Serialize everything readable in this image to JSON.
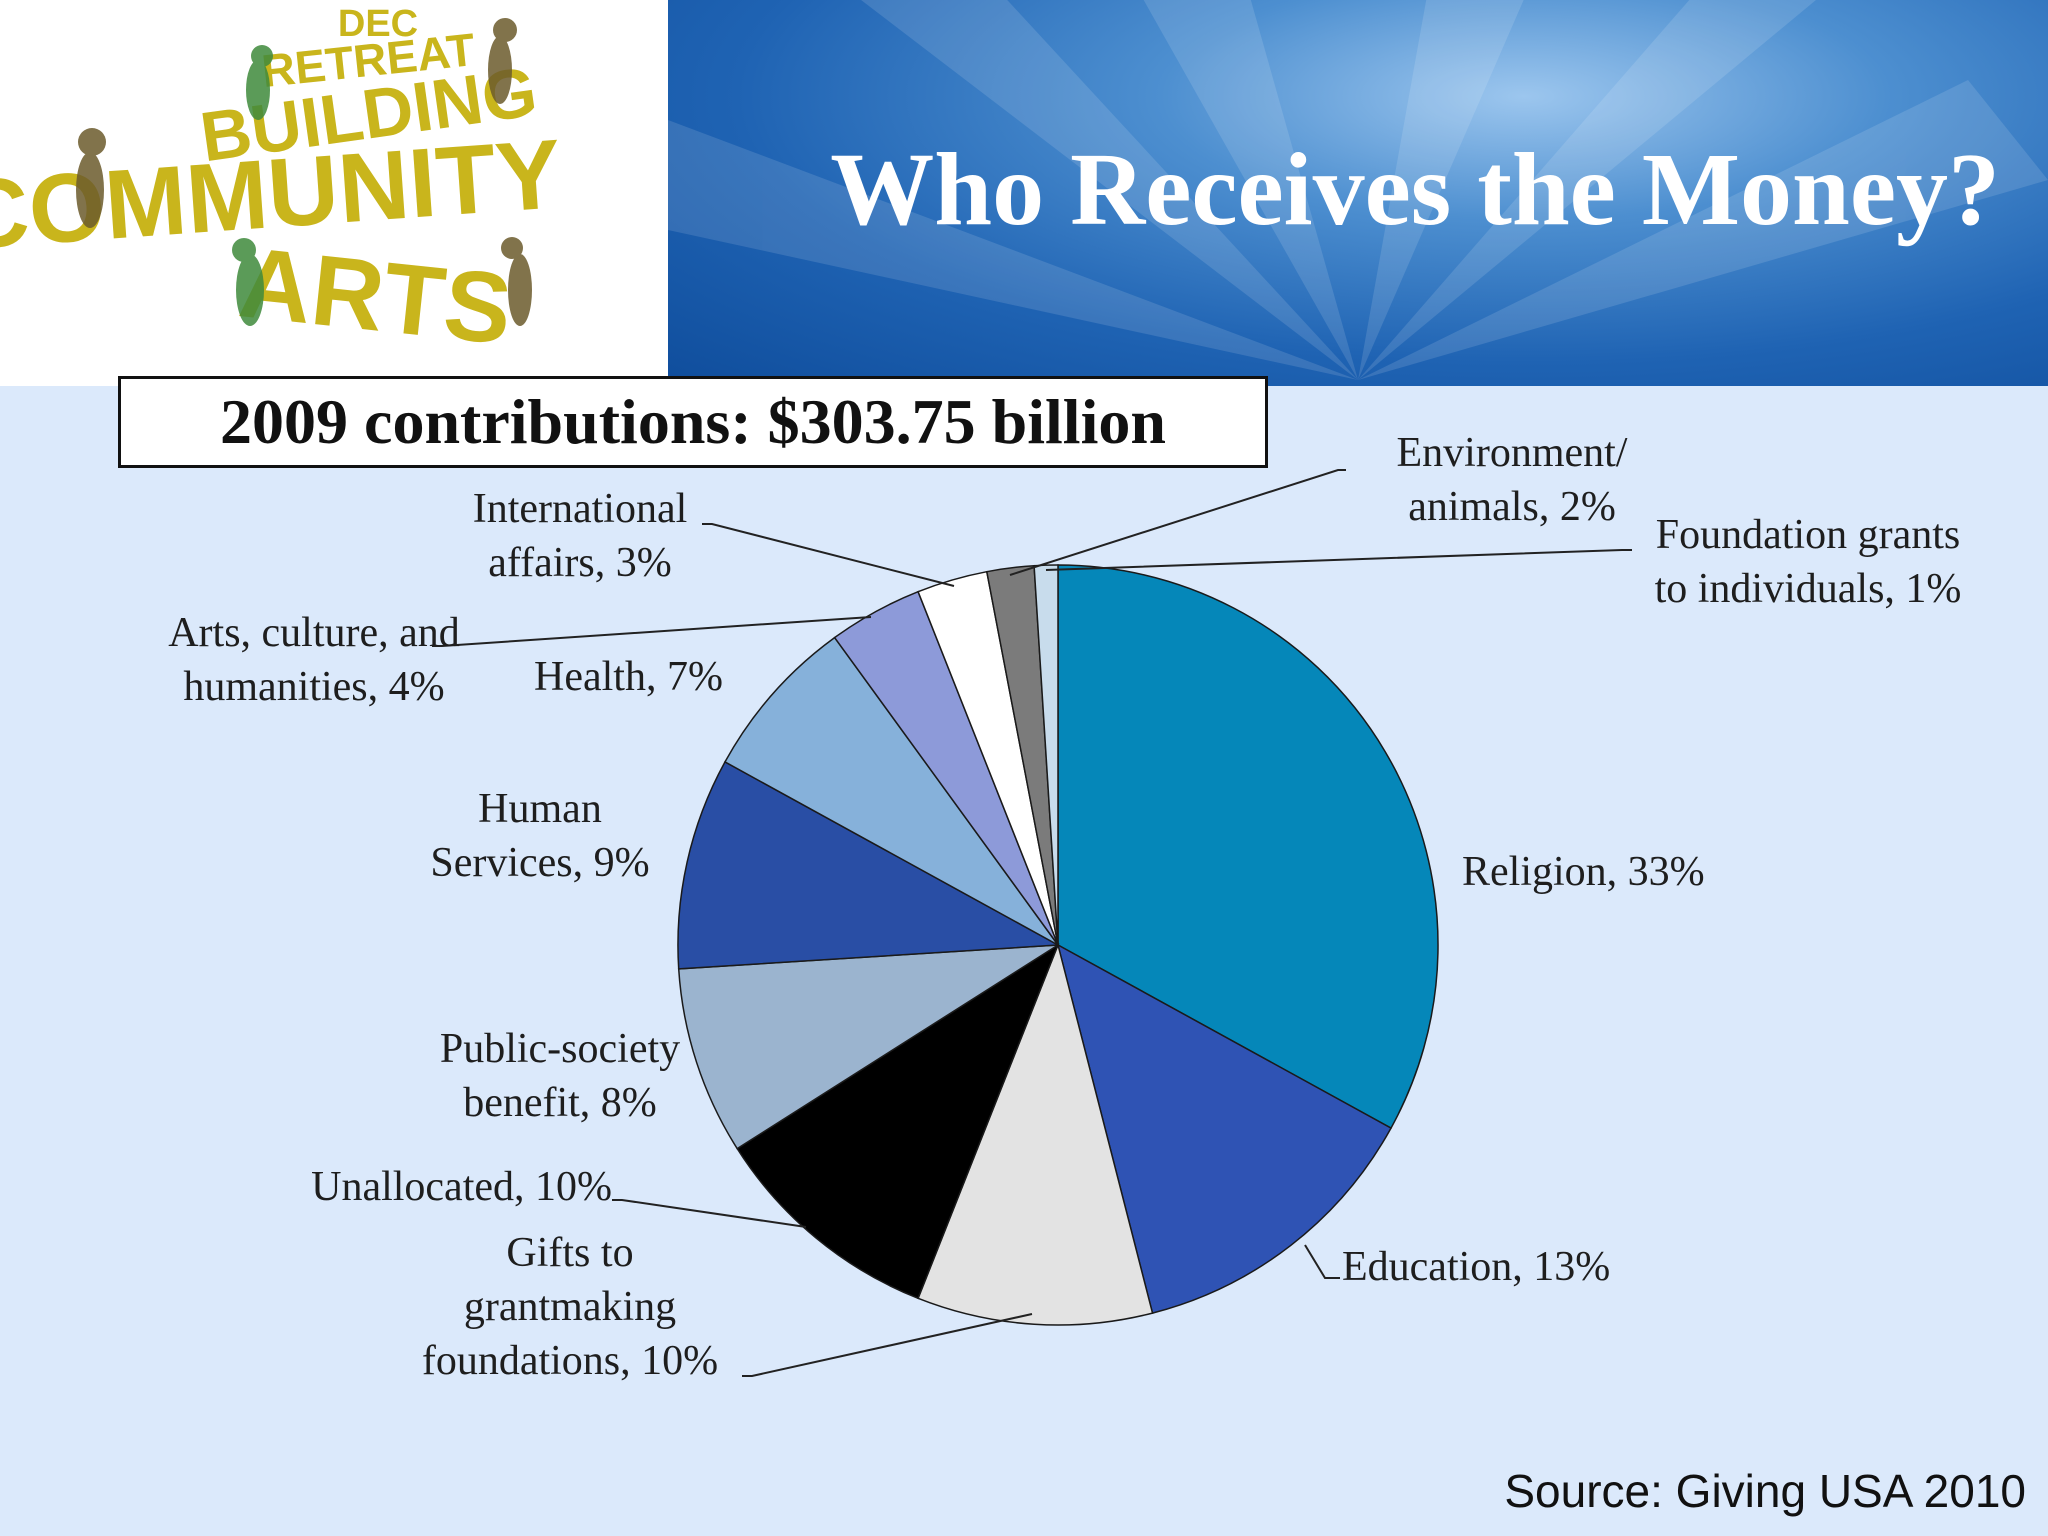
{
  "slide": {
    "title": "Who Receives the Money?",
    "subtitle": "2009 contributions: $303.75 billion",
    "source": "Source: Giving USA 2010"
  },
  "logo": {
    "lines": [
      "DEC",
      "RETREAT",
      "BUILDING",
      "COMMUNITY",
      "ARTS"
    ],
    "color": "#c9b51c"
  },
  "colors": {
    "header_blue": "#1f63b3",
    "content_background": "#dbe9fb"
  },
  "chart_data": {
    "type": "pie",
    "title": "2009 contributions: $303.75 billion",
    "start": "12 o'clock",
    "direction": "clockwise",
    "slices": [
      {
        "label": "Religion, 33%",
        "value": 33,
        "color": "#0587b9"
      },
      {
        "label": "Education, 13%",
        "value": 13,
        "color": "#2f53b4"
      },
      {
        "label": "Gifts to grantmaking foundations, 10%",
        "value": 10,
        "color": "#e3e3e3"
      },
      {
        "label": "Unallocated, 10%",
        "value": 10,
        "color": "#000000"
      },
      {
        "label": "Public-society benefit, 8%",
        "value": 8,
        "color": "#9bb4cf"
      },
      {
        "label": "Human Services, 9%",
        "value": 9,
        "color": "#294ea5"
      },
      {
        "label": "Health, 7%",
        "value": 7,
        "color": "#86b1da"
      },
      {
        "label": "Arts, culture, and humanities, 4%",
        "value": 4,
        "color": "#8d9ad9"
      },
      {
        "label": "International affairs, 3%",
        "value": 3,
        "color": "#ffffff"
      },
      {
        "label": "Environment/ animals, 2%",
        "value": 2,
        "color": "#7b7b7b"
      },
      {
        "label": "Foundation grants to individuals, 1%",
        "value": 1,
        "color": "#c8dcec"
      }
    ]
  }
}
